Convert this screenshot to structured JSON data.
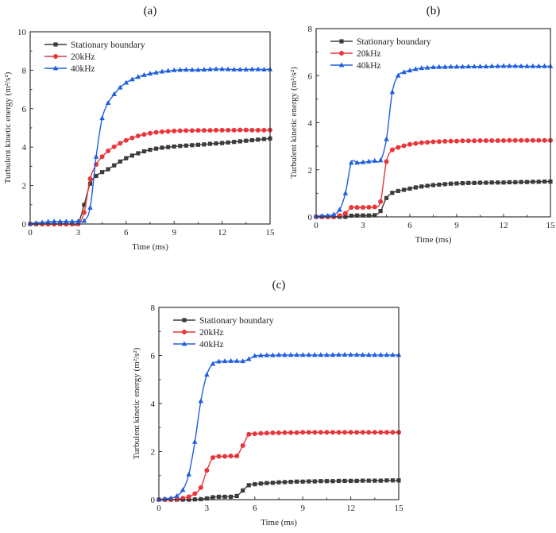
{
  "chart_data": [
    {
      "type": "line",
      "panel_label": "(a)",
      "xlabel": "Time (ms)",
      "ylabel": "Turbulent kinetic energy (m²/s²)",
      "xlim": [
        0,
        15
      ],
      "ylim": [
        0,
        10
      ],
      "xticks": [
        0,
        3,
        6,
        9,
        12,
        15
      ],
      "yticks": [
        0,
        2,
        4,
        6,
        8,
        10
      ],
      "legend_position": "top-left",
      "x": [
        0,
        0.375,
        0.75,
        1.125,
        1.5,
        1.875,
        2.25,
        2.625,
        3,
        3.375,
        3.75,
        4.125,
        4.5,
        4.875,
        5.25,
        5.625,
        6,
        6.375,
        6.75,
        7.125,
        7.5,
        7.875,
        8.25,
        8.625,
        9,
        9.375,
        9.75,
        10.125,
        10.5,
        10.875,
        11.25,
        11.625,
        12,
        12.375,
        12.75,
        13.125,
        13.5,
        13.875,
        14.25,
        14.625,
        15
      ],
      "series": [
        {
          "name": "Stationary boundary",
          "color": "#3c3c3c",
          "marker": "square",
          "values": [
            0,
            0,
            0,
            0,
            0,
            0,
            0,
            0,
            0.02,
            1.0,
            2.1,
            2.5,
            2.7,
            2.85,
            3.05,
            3.25,
            3.42,
            3.56,
            3.68,
            3.78,
            3.86,
            3.92,
            3.97,
            4.0,
            4.03,
            4.06,
            4.08,
            4.1,
            4.12,
            4.14,
            4.17,
            4.19,
            4.21,
            4.24,
            4.27,
            4.3,
            4.33,
            4.36,
            4.39,
            4.42,
            4.45
          ]
        },
        {
          "name": "20kHz",
          "color": "#e8363a",
          "marker": "circle",
          "values": [
            0,
            0,
            0,
            0,
            0,
            0,
            0,
            0,
            0,
            0.6,
            2.35,
            3.1,
            3.5,
            3.8,
            4.02,
            4.2,
            4.35,
            4.48,
            4.58,
            4.66,
            4.72,
            4.77,
            4.8,
            4.82,
            4.84,
            4.85,
            4.86,
            4.86,
            4.87,
            4.87,
            4.87,
            4.88,
            4.88,
            4.88,
            4.88,
            4.89,
            4.89,
            4.88,
            4.88,
            4.88,
            4.89
          ]
        },
        {
          "name": "40kHz",
          "color": "#1f5fe0",
          "marker": "triangle",
          "values": [
            0.02,
            0.05,
            0.08,
            0.12,
            0.13,
            0.13,
            0.13,
            0.13,
            0.14,
            0.16,
            0.85,
            3.5,
            5.5,
            6.3,
            6.75,
            7.1,
            7.35,
            7.52,
            7.65,
            7.75,
            7.82,
            7.88,
            7.93,
            7.97,
            8.0,
            8.02,
            8.03,
            8.02,
            8.02,
            8.03,
            8.05,
            8.06,
            8.06,
            8.05,
            8.04,
            8.04,
            8.04,
            8.05,
            8.05,
            8.04,
            8.05
          ]
        }
      ]
    },
    {
      "type": "line",
      "panel_label": "(b)",
      "xlabel": "Time (ms)",
      "ylabel": "Turbulent kinetic energy (m²/s²)",
      "xlim": [
        0,
        15
      ],
      "ylim": [
        0,
        8
      ],
      "xticks": [
        0,
        3,
        6,
        9,
        12,
        15
      ],
      "yticks": [
        0,
        2,
        4,
        6,
        8
      ],
      "legend_position": "top-left",
      "x": [
        0,
        0.375,
        0.75,
        1.125,
        1.5,
        1.875,
        2.25,
        2.625,
        3,
        3.375,
        3.75,
        4.125,
        4.5,
        4.875,
        5.25,
        5.625,
        6,
        6.375,
        6.75,
        7.125,
        7.5,
        7.875,
        8.25,
        8.625,
        9,
        9.375,
        9.75,
        10.125,
        10.5,
        10.875,
        11.25,
        11.625,
        12,
        12.375,
        12.75,
        13.125,
        13.5,
        13.875,
        14.25,
        14.625,
        15
      ],
      "series": [
        {
          "name": "Stationary boundary",
          "color": "#3c3c3c",
          "marker": "square",
          "values": [
            0,
            0,
            0,
            0,
            0,
            0,
            0.05,
            0.06,
            0.06,
            0.06,
            0.07,
            0.25,
            0.8,
            1.02,
            1.1,
            1.15,
            1.2,
            1.25,
            1.29,
            1.32,
            1.35,
            1.37,
            1.39,
            1.41,
            1.42,
            1.43,
            1.44,
            1.44,
            1.45,
            1.45,
            1.46,
            1.46,
            1.46,
            1.47,
            1.47,
            1.48,
            1.48,
            1.49,
            1.49,
            1.5,
            1.5
          ]
        },
        {
          "name": "20kHz",
          "color": "#e8363a",
          "marker": "circle",
          "values": [
            0,
            0,
            0,
            0,
            0.05,
            0.15,
            0.4,
            0.4,
            0.4,
            0.41,
            0.42,
            0.65,
            2.35,
            2.85,
            2.95,
            3.02,
            3.08,
            3.12,
            3.15,
            3.17,
            3.19,
            3.2,
            3.21,
            3.22,
            3.22,
            3.23,
            3.23,
            3.23,
            3.24,
            3.24,
            3.24,
            3.24,
            3.24,
            3.25,
            3.25,
            3.25,
            3.25,
            3.25,
            3.25,
            3.25,
            3.25
          ]
        },
        {
          "name": "40kHz",
          "color": "#1f5fe0",
          "marker": "triangle",
          "values": [
            0.02,
            0.04,
            0.05,
            0.1,
            0.3,
            1.0,
            2.3,
            2.3,
            2.32,
            2.35,
            2.38,
            2.4,
            3.3,
            5.3,
            6.0,
            6.15,
            6.22,
            6.28,
            6.32,
            6.34,
            6.36,
            6.37,
            6.37,
            6.38,
            6.38,
            6.38,
            6.39,
            6.39,
            6.39,
            6.39,
            6.4,
            6.4,
            6.41,
            6.41,
            6.41,
            6.4,
            6.4,
            6.4,
            6.4,
            6.4,
            6.4
          ]
        }
      ]
    },
    {
      "type": "line",
      "panel_label": "(c)",
      "xlabel": "Time (ms)",
      "ylabel": "Turbulent kinetic energy (m²/s²)",
      "xlim": [
        0,
        15
      ],
      "ylim": [
        0,
        8
      ],
      "xticks": [
        0,
        3,
        6,
        9,
        12,
        15
      ],
      "yticks": [
        0,
        2,
        4,
        6,
        8
      ],
      "legend_position": "top-left",
      "x": [
        0,
        0.375,
        0.75,
        1.125,
        1.5,
        1.875,
        2.25,
        2.625,
        3,
        3.375,
        3.75,
        4.125,
        4.5,
        4.875,
        5.25,
        5.625,
        6,
        6.375,
        6.75,
        7.125,
        7.5,
        7.875,
        8.25,
        8.625,
        9,
        9.375,
        9.75,
        10.125,
        10.5,
        10.875,
        11.25,
        11.625,
        12,
        12.375,
        12.75,
        13.125,
        13.5,
        13.875,
        14.25,
        14.625,
        15
      ],
      "series": [
        {
          "name": "Stationary boundary",
          "color": "#3c3c3c",
          "marker": "square",
          "values": [
            0,
            0,
            0,
            0,
            0,
            0,
            0.01,
            0.02,
            0.05,
            0.1,
            0.12,
            0.12,
            0.12,
            0.15,
            0.38,
            0.6,
            0.64,
            0.67,
            0.69,
            0.7,
            0.72,
            0.73,
            0.74,
            0.75,
            0.75,
            0.76,
            0.76,
            0.77,
            0.77,
            0.77,
            0.78,
            0.78,
            0.78,
            0.78,
            0.79,
            0.79,
            0.79,
            0.79,
            0.8,
            0.8,
            0.8
          ]
        },
        {
          "name": "20kHz",
          "color": "#e8363a",
          "marker": "circle",
          "values": [
            0,
            0,
            0,
            0.02,
            0.06,
            0.12,
            0.25,
            0.5,
            1.22,
            1.75,
            1.8,
            1.8,
            1.82,
            1.82,
            2.25,
            2.72,
            2.74,
            2.76,
            2.77,
            2.78,
            2.78,
            2.79,
            2.79,
            2.79,
            2.8,
            2.8,
            2.8,
            2.8,
            2.8,
            2.8,
            2.8,
            2.8,
            2.8,
            2.8,
            2.8,
            2.8,
            2.8,
            2.8,
            2.8,
            2.8,
            2.8
          ]
        },
        {
          "name": "40kHz",
          "color": "#1f5fe0",
          "marker": "triangle",
          "values": [
            0.01,
            0.03,
            0.06,
            0.15,
            0.4,
            1.05,
            2.4,
            4.1,
            5.2,
            5.65,
            5.75,
            5.76,
            5.77,
            5.77,
            5.76,
            5.85,
            5.98,
            6.0,
            6.01,
            6.01,
            6.02,
            6.02,
            6.02,
            6.02,
            6.02,
            6.02,
            6.02,
            6.02,
            6.02,
            6.02,
            6.03,
            6.03,
            6.03,
            6.03,
            6.02,
            6.02,
            6.02,
            6.02,
            6.02,
            6.02,
            6.02
          ]
        }
      ]
    }
  ]
}
